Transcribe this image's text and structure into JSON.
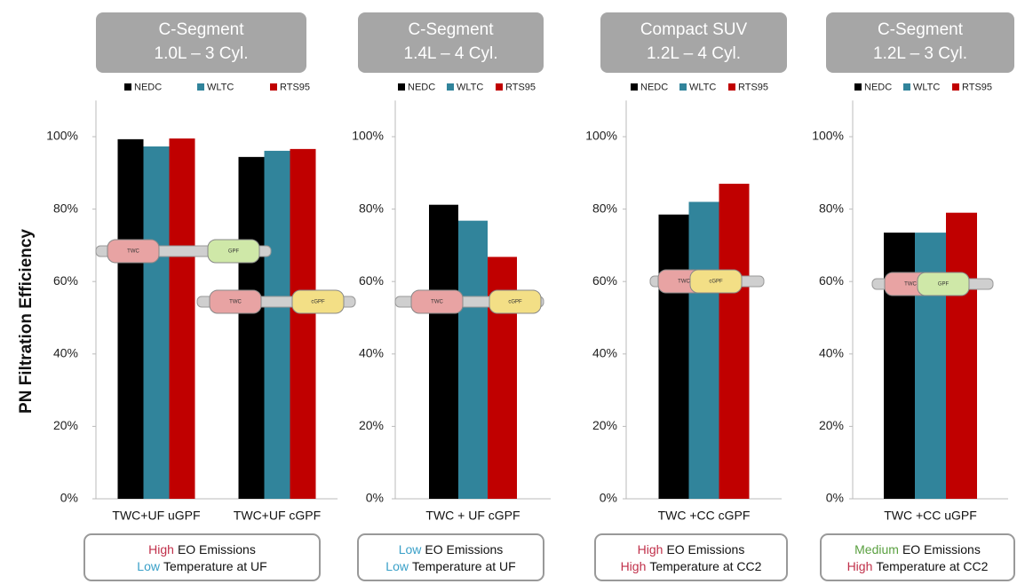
{
  "chart_data": [
    {
      "type": "bar",
      "title": "C-Segment",
      "subtitle": "1.0L – 3 Cyl.",
      "ylabel": "PN Filtration Efficiency",
      "categories": [
        "TWC+UF uGPF",
        "TWC+UF cGPF"
      ],
      "series": [
        {
          "name": "NEDC",
          "color": "#000000",
          "values": [
            99.3,
            94.4
          ]
        },
        {
          "name": "WLTC",
          "color": "#31849b",
          "values": [
            97.3,
            96.1
          ]
        },
        {
          "name": "RTS95",
          "color": "#c00000",
          "values": [
            99.5,
            96.6
          ]
        }
      ],
      "ylim": [
        0,
        110
      ],
      "yticks": [
        {
          "value": 0,
          "label": "0%"
        },
        {
          "value": 20,
          "label": "20%"
        },
        {
          "value": 40,
          "label": "40%"
        },
        {
          "value": 60,
          "label": "60%"
        },
        {
          "value": 80,
          "label": "80%"
        },
        {
          "value": 100,
          "label": "100%"
        }
      ],
      "diagrams": [
        [
          "TWC",
          "GPF"
        ],
        [
          "TWC",
          "cGPF"
        ]
      ],
      "annotations": [
        {
          "level": "High",
          "text": "EO Emissions",
          "color": "#c0304a"
        },
        {
          "level": "Low",
          "text": "Temperature at UF",
          "color": "#3aa0c8"
        }
      ]
    },
    {
      "type": "bar",
      "title": "C-Segment",
      "subtitle": "1.4L – 4 Cyl.",
      "categories": [
        "TWC + UF cGPF"
      ],
      "series": [
        {
          "name": "NEDC",
          "color": "#000000",
          "values": [
            81.2
          ]
        },
        {
          "name": "WLTC",
          "color": "#31849b",
          "values": [
            76.8
          ]
        },
        {
          "name": "RTS95",
          "color": "#c00000",
          "values": [
            66.8
          ]
        }
      ],
      "ylim": [
        0,
        110
      ],
      "yticks": [
        {
          "value": 0,
          "label": "0%"
        },
        {
          "value": 20,
          "label": "20%"
        },
        {
          "value": 40,
          "label": "40%"
        },
        {
          "value": 60,
          "label": "60%"
        },
        {
          "value": 80,
          "label": "80%"
        },
        {
          "value": 100,
          "label": "100%"
        }
      ],
      "diagrams": [
        [
          "TWC",
          "cGPF"
        ]
      ],
      "annotations": [
        {
          "level": "Low",
          "text": "EO Emissions",
          "color": "#3aa0c8"
        },
        {
          "level": "Low",
          "text": "Temperature at UF",
          "color": "#3aa0c8"
        }
      ]
    },
    {
      "type": "bar",
      "title": "Compact SUV",
      "subtitle": "1.2L – 4 Cyl.",
      "categories": [
        "TWC +CC cGPF"
      ],
      "series": [
        {
          "name": "NEDC",
          "color": "#000000",
          "values": [
            78.5
          ]
        },
        {
          "name": "WLTC",
          "color": "#31849b",
          "values": [
            82
          ]
        },
        {
          "name": "RTS95",
          "color": "#c00000",
          "values": [
            87
          ]
        }
      ],
      "ylim": [
        0,
        110
      ],
      "yticks": [
        {
          "value": 0,
          "label": "0%"
        },
        {
          "value": 20,
          "label": "20%"
        },
        {
          "value": 40,
          "label": "40%"
        },
        {
          "value": 60,
          "label": "60%"
        },
        {
          "value": 80,
          "label": "80%"
        },
        {
          "value": 100,
          "label": "100%"
        }
      ],
      "diagrams": [
        [
          "TWC",
          "cGPF"
        ]
      ],
      "annotations": [
        {
          "level": "High",
          "text": "EO Emissions",
          "color": "#c0304a"
        },
        {
          "level": "High",
          "text": "Temperature at CC2",
          "color": "#c0304a"
        }
      ]
    },
    {
      "type": "bar",
      "title": "C-Segment",
      "subtitle": "1.2L – 3 Cyl.",
      "categories": [
        "TWC +CC uGPF"
      ],
      "series": [
        {
          "name": "NEDC",
          "color": "#000000",
          "values": [
            73.5
          ]
        },
        {
          "name": "WLTC",
          "color": "#31849b",
          "values": [
            73.5
          ]
        },
        {
          "name": "RTS95",
          "color": "#c00000",
          "values": [
            79
          ]
        }
      ],
      "ylim": [
        0,
        110
      ],
      "yticks": [
        {
          "value": 0,
          "label": "0%"
        },
        {
          "value": 20,
          "label": "20%"
        },
        {
          "value": 40,
          "label": "40%"
        },
        {
          "value": 60,
          "label": "60%"
        },
        {
          "value": 80,
          "label": "80%"
        },
        {
          "value": 100,
          "label": "100%"
        }
      ],
      "diagrams": [
        [
          "TWC",
          "GPF"
        ]
      ],
      "annotations": [
        {
          "level": "Medium",
          "text": "EO Emissions",
          "color": "#5aa040"
        },
        {
          "level": "High",
          "text": "Temperature at CC2",
          "color": "#c0304a"
        }
      ]
    }
  ]
}
